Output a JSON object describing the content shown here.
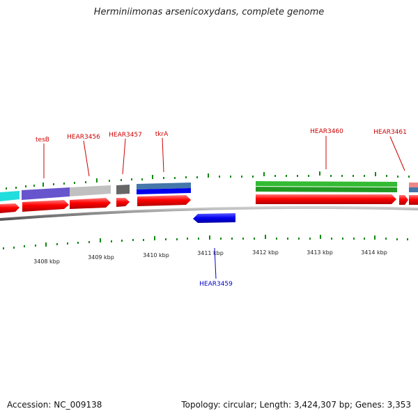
{
  "title": "Herminiimonas arsenicoxydans, complete genome",
  "accession": "Accession: NC_009138",
  "topology": "Topology: circular; Length: 3,424,307 bp; Genes: 3,353",
  "scale_labels": [
    "3408 kbp",
    "3409 kbp",
    "3410 kbp",
    "3411 kbp",
    "3412 kbp",
    "3413 kbp",
    "3414 kbp"
  ],
  "gene_labels": [
    {
      "text": "tesB",
      "color": "#cc0000"
    },
    {
      "text": "HEAR3456",
      "color": "#cc0000"
    },
    {
      "text": "HEAR3457",
      "color": "#cc0000"
    },
    {
      "text": "tkrA",
      "color": "#cc0000"
    },
    {
      "text": "HEAR3460",
      "color": "#cc0000"
    },
    {
      "text": "HEAR3461",
      "color": "#cc0000"
    },
    {
      "text": "HEAR3459",
      "color": "#0000cc"
    }
  ],
  "colors": {
    "forward_gene": "#ee0000",
    "reverse_gene": "#0000ee",
    "backbone": "#888888",
    "tick": "#118811",
    "cog_cyan": "#22dddd",
    "cog_purple": "#6655cc",
    "cog_lightgray": "#c0c0c0",
    "cog_darkgray": "#666666",
    "cog_steelblue": "#4477aa",
    "cog_green": "#22aa22",
    "cog_pink": "#ee8888"
  }
}
